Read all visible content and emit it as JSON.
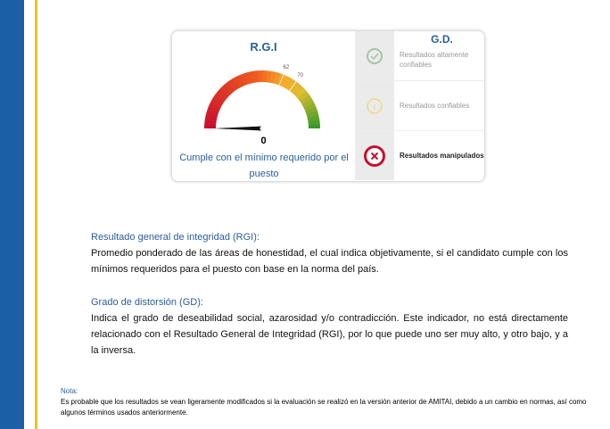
{
  "rgi": {
    "title": "R.G.I",
    "value": "0",
    "gauge_value": 0,
    "gauge_min": 0,
    "gauge_max": 100,
    "ticks": [
      "62",
      "70"
    ],
    "description": "Cumple con el mínimo requerido por el puesto"
  },
  "gd": {
    "title": "G.D.",
    "items": [
      {
        "label": "Resultados altamente confiables",
        "icon": "check-circle-icon",
        "active": false
      },
      {
        "label": "Resultados confiables",
        "icon": "info-circle-icon",
        "active": false
      },
      {
        "label": "Resultados manipulados",
        "icon": "x-circle-icon",
        "active": true
      }
    ]
  },
  "sections": [
    {
      "heading": "Resultado general de integridad (RGI):",
      "text": "Promedio ponderado de las áreas de honestidad, el cual indica objetivamente, si el candidato cumple con los mínimos requeridos para el puesto con base en la norma del país."
    },
    {
      "heading": "Grado de distorsión (GD):",
      "text": "Indica el grado de deseabilidad social, azarosidad y/o contradicción. Este indicador, no está directamente relacionado con el Resultado General de Integridad (RGI), por lo que puede uno ser muy alto, y otro bajo, y a la inversa."
    }
  ],
  "note": {
    "heading": "Nota:",
    "text": "Es probable que los resultados se vean ligeramente modificados si la evaluación se realizó en la versión anterior de AMITAI, debido a un cambio en normas, así como algunos términos usados anteriormente."
  },
  "colors": {
    "sidebar": "#1b5fa4",
    "accent_line": "#e8c72e",
    "title": "#2a5e9a",
    "danger": "#c8102e"
  }
}
